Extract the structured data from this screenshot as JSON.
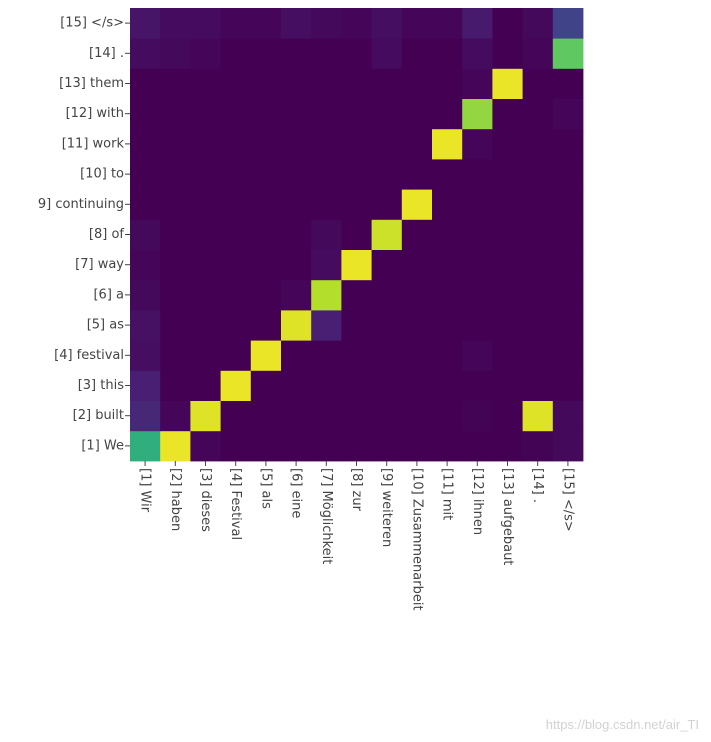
{
  "chart_data": {
    "type": "heatmap",
    "title": "",
    "xlabel": "",
    "ylabel": "",
    "colorscale": "viridis",
    "zlim": [
      0,
      1
    ],
    "x_labels": [
      "[1] Wir",
      "[2] haben",
      "[3] dieses",
      "[4] Festival",
      "[5] als",
      "[6] eine",
      "[7] Möglichkeit",
      "[8] zur",
      "[9] weiteren",
      "[10] Zusammenarbeit",
      "[11] mit",
      "[12] ihnen",
      "[13] aufgebaut",
      "[14] .",
      "[15] </s>"
    ],
    "y_labels": [
      "[1] We",
      "[2] built",
      "[3] this",
      "[4] festival",
      "[5] as",
      "[6] a",
      "[7] way",
      "[8] of",
      "9] continuing",
      "[10] to",
      "[11] work",
      "[12] with",
      "[13] them",
      "[14] .",
      "[15] </s>"
    ],
    "values": [
      [
        0.6,
        0.97,
        0.02,
        0.0,
        0.0,
        0.0,
        0.0,
        0.0,
        0.0,
        0.0,
        0.0,
        0.0,
        0.0,
        0.01,
        0.03
      ],
      [
        0.15,
        0.02,
        0.95,
        0.0,
        0.0,
        0.0,
        0.0,
        0.0,
        0.0,
        0.0,
        0.0,
        0.01,
        0.0,
        0.95,
        0.03
      ],
      [
        0.12,
        0.0,
        0.0,
        0.97,
        0.0,
        0.0,
        0.0,
        0.0,
        0.0,
        0.0,
        0.0,
        0.0,
        0.0,
        0.0,
        0.0
      ],
      [
        0.05,
        0.0,
        0.0,
        0.0,
        0.97,
        0.0,
        0.0,
        0.0,
        0.0,
        0.0,
        0.0,
        0.02,
        0.0,
        0.0,
        0.0
      ],
      [
        0.06,
        0.0,
        0.0,
        0.0,
        0.0,
        0.95,
        0.12,
        0.0,
        0.0,
        0.0,
        0.0,
        0.0,
        0.0,
        0.0,
        0.0
      ],
      [
        0.03,
        0.0,
        0.0,
        0.0,
        0.0,
        0.02,
        0.88,
        0.0,
        0.0,
        0.0,
        0.0,
        0.0,
        0.0,
        0.0,
        0.0
      ],
      [
        0.02,
        0.0,
        0.0,
        0.0,
        0.0,
        0.0,
        0.04,
        0.97,
        0.0,
        0.0,
        0.0,
        0.0,
        0.0,
        0.0,
        0.0
      ],
      [
        0.03,
        0.0,
        0.0,
        0.0,
        0.0,
        0.0,
        0.03,
        0.0,
        0.92,
        0.0,
        0.0,
        0.0,
        0.0,
        0.0,
        0.0
      ],
      [
        0.0,
        0.0,
        0.0,
        0.0,
        0.0,
        0.0,
        0.0,
        0.0,
        0.0,
        0.97,
        0.0,
        0.0,
        0.0,
        0.0,
        0.0
      ],
      [
        0.0,
        0.0,
        0.0,
        0.0,
        0.0,
        0.0,
        0.0,
        0.0,
        0.0,
        0.0,
        0.0,
        0.0,
        0.0,
        0.0,
        0.0
      ],
      [
        0.0,
        0.0,
        0.0,
        0.0,
        0.0,
        0.0,
        0.0,
        0.0,
        0.0,
        0.0,
        0.97,
        0.02,
        0.0,
        0.0,
        0.0
      ],
      [
        0.0,
        0.0,
        0.0,
        0.0,
        0.0,
        0.0,
        0.0,
        0.0,
        0.0,
        0.0,
        0.0,
        0.82,
        0.0,
        0.0,
        0.02
      ],
      [
        0.0,
        0.0,
        0.0,
        0.0,
        0.0,
        0.0,
        0.0,
        0.0,
        0.0,
        0.0,
        0.0,
        0.02,
        0.97,
        0.0,
        0.0
      ],
      [
        0.04,
        0.03,
        0.02,
        0.0,
        0.0,
        0.0,
        0.0,
        0.0,
        0.04,
        0.0,
        0.0,
        0.04,
        0.0,
        0.02,
        0.72
      ],
      [
        0.08,
        0.04,
        0.04,
        0.02,
        0.02,
        0.05,
        0.03,
        0.02,
        0.05,
        0.02,
        0.02,
        0.1,
        0.0,
        0.03,
        0.25
      ]
    ]
  },
  "watermark": "https://blog.csdn.net/air_TI"
}
